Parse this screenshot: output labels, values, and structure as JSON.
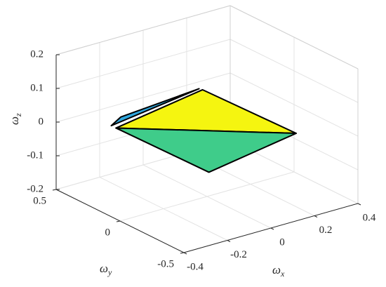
{
  "chart_data": {
    "type": "patch3d",
    "xlabel": "ω",
    "xlabel_subscript": "x",
    "ylabel": "ω",
    "ylabel_subscript": "y",
    "zlabel": "ω",
    "zlabel_subscript": "z",
    "xlim": [
      -0.4,
      0.4
    ],
    "xticks": [
      -0.4,
      -0.2,
      0,
      0.2,
      0.4
    ],
    "ylim": [
      -0.5,
      0.5
    ],
    "yticks": [
      -0.5,
      0,
      0.5
    ],
    "zlim": [
      -0.2,
      0.2
    ],
    "zticks": [
      -0.2,
      -0.1,
      0,
      0.1,
      0.2
    ],
    "grid": true,
    "patches": [
      {
        "color": "#2fa7de",
        "x": [
          -0.27,
          0.11,
          -0.22
        ],
        "y": [
          0.29,
          0.25,
          0.3
        ],
        "z": [
          0.005,
          0.053,
          0.02
        ]
      },
      {
        "color": "#f5f510",
        "x": [
          -0.26,
          0.12,
          0.236
        ],
        "y": [
          0.27,
          0.24,
          -0.296
        ],
        "z": [
          0,
          0.05,
          0
        ]
      },
      {
        "color": "#3fcc8a",
        "x": [
          -0.26,
          0.236,
          -0.15
        ],
        "y": [
          0.27,
          -0.296,
          -0.27
        ],
        "z": [
          0,
          0,
          -0.05
        ]
      }
    ]
  }
}
